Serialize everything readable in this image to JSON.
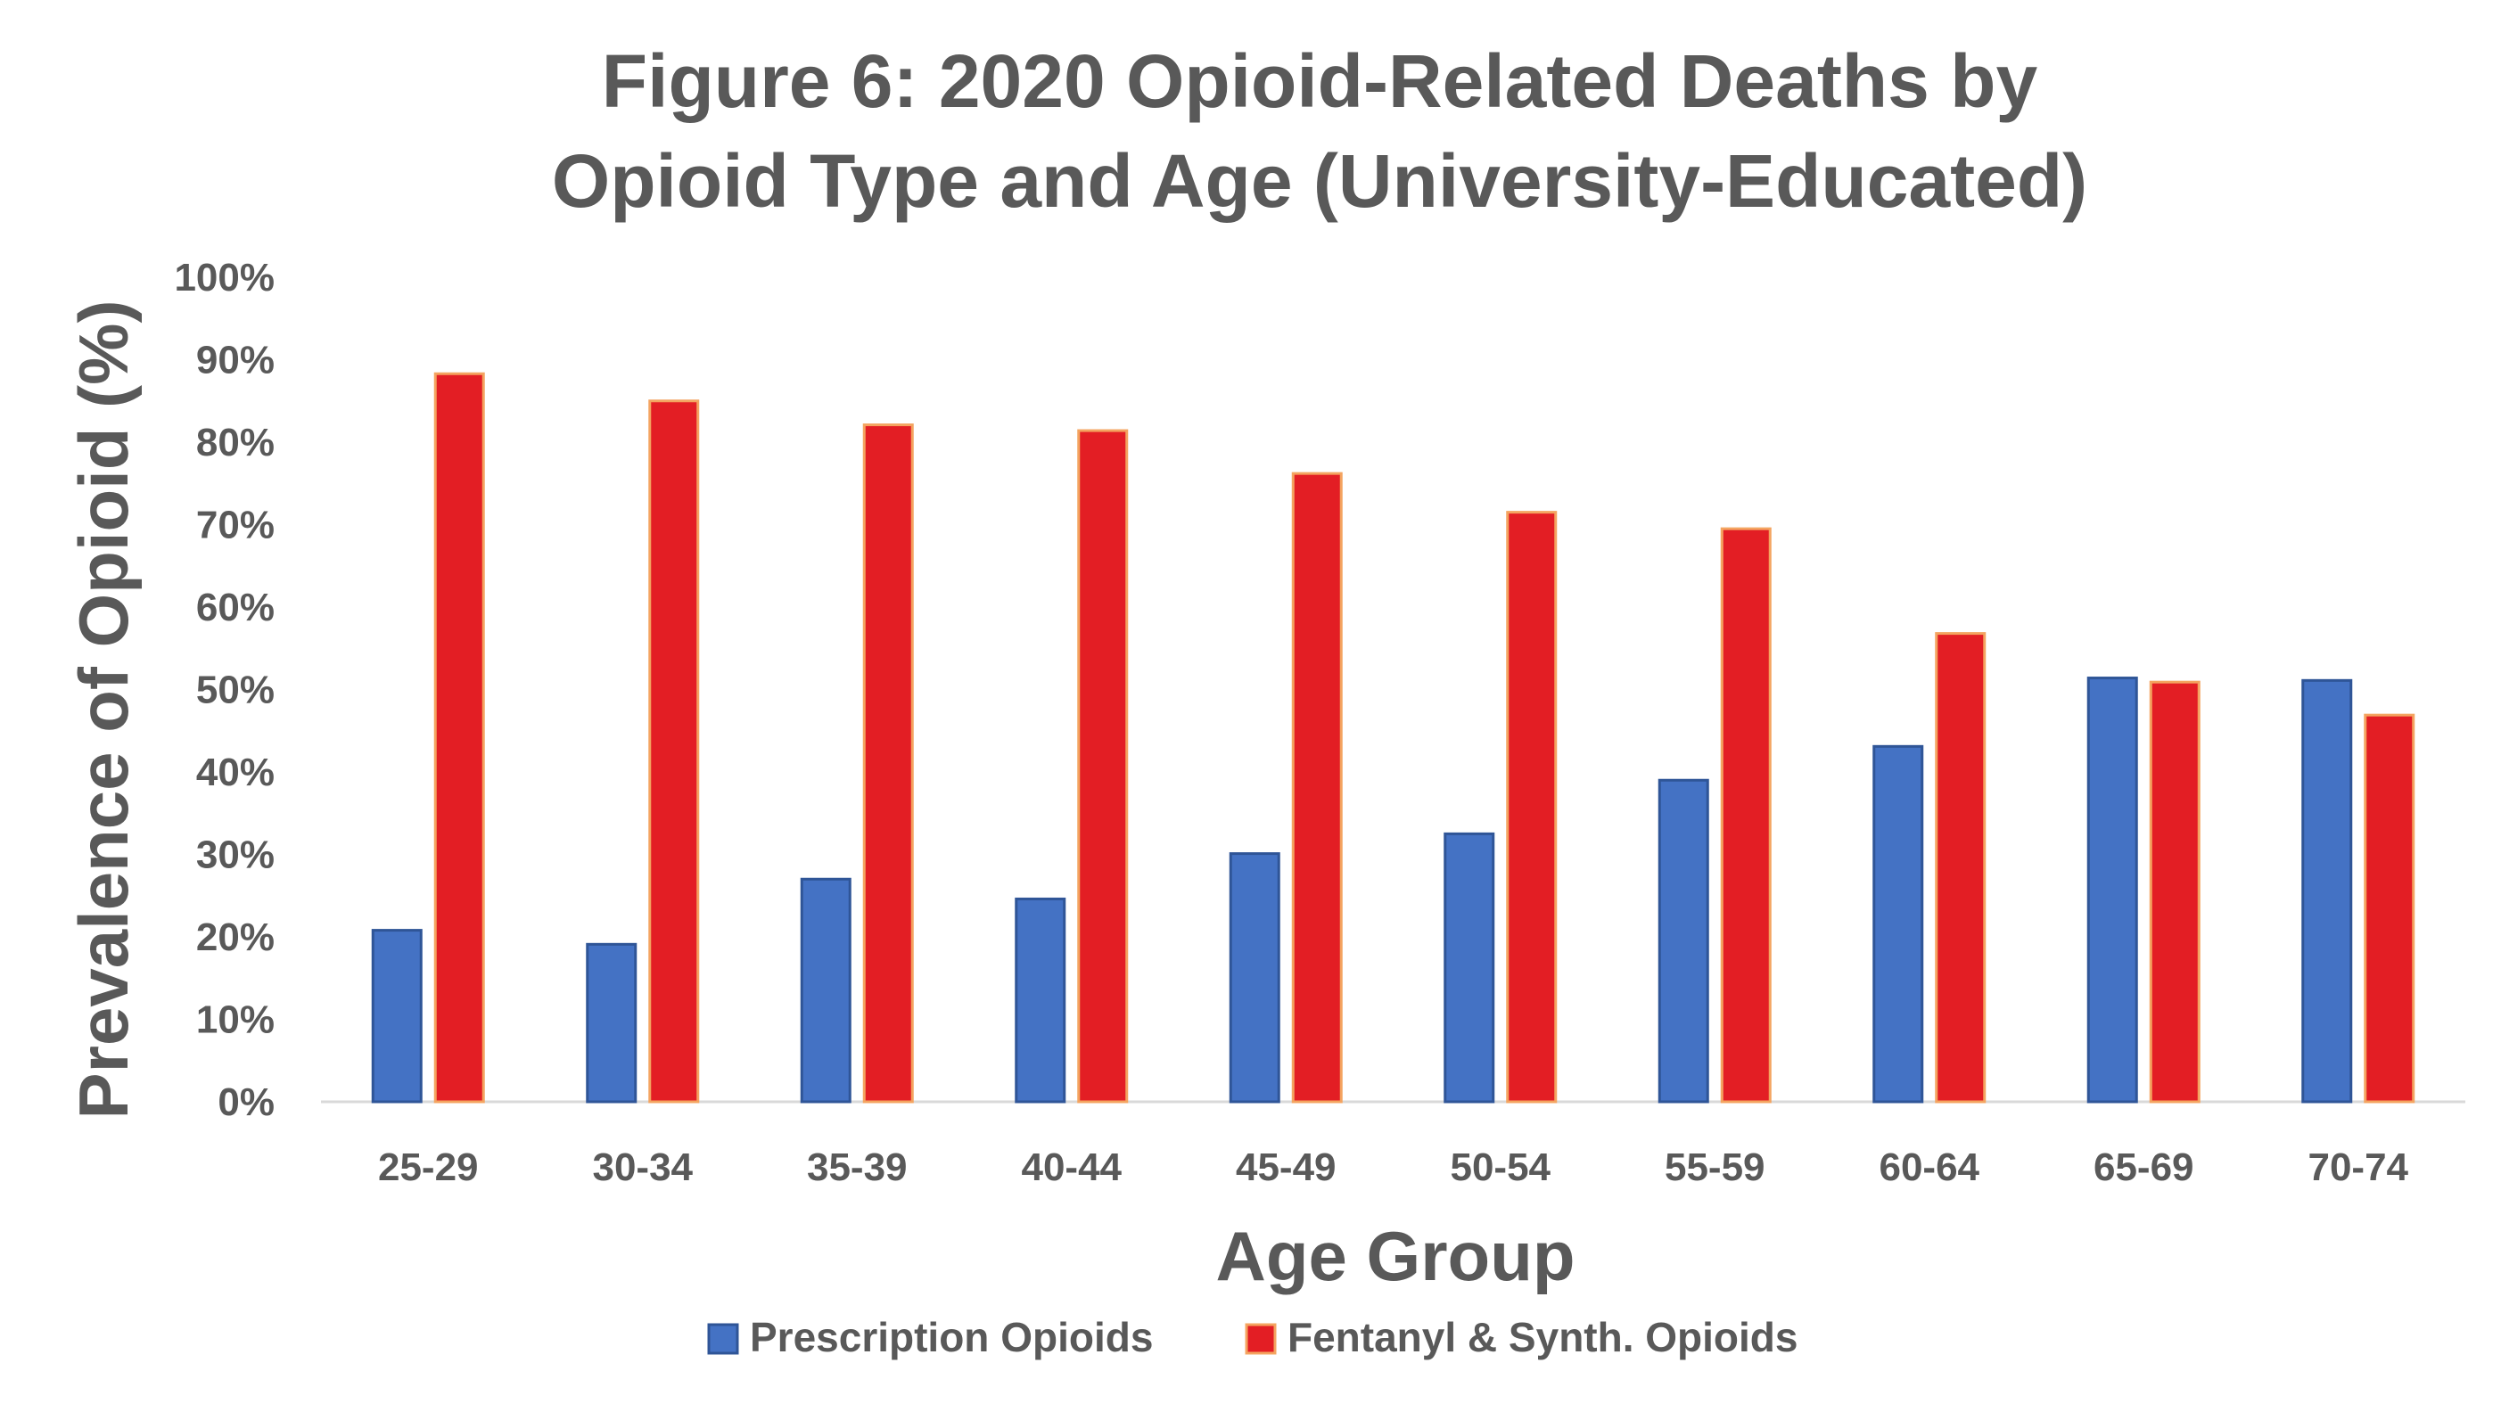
{
  "chart_data": {
    "type": "bar",
    "title_lines": [
      "Figure 6: 2020 Opioid-Related Deaths by",
      "Opioid Type and Age (University-Educated)"
    ],
    "xlabel": "Age Group",
    "ylabel": "Prevalence of Opioid (%)",
    "ylim": [
      0,
      100
    ],
    "yticks": [
      "0%",
      "10%",
      "20%",
      "30%",
      "40%",
      "50%",
      "60%",
      "70%",
      "80%",
      "90%",
      "100%"
    ],
    "categories": [
      "25-29",
      "30-34",
      "35-39",
      "40-44",
      "45-49",
      "50-54",
      "55-59",
      "60-64",
      "65-69",
      "70-74"
    ],
    "series": [
      {
        "name": "Prescription Opioids",
        "color": "#4472C4",
        "edge": "#2F5597",
        "values": [
          20.8,
          19.1,
          27.0,
          24.6,
          30.1,
          32.5,
          39.0,
          43.1,
          51.4,
          51.1
        ]
      },
      {
        "name": "Fentanyl & Synth. Opioids",
        "color": "#E31E24",
        "edge": "#F4A460",
        "values": [
          88.3,
          85.0,
          82.1,
          81.4,
          76.2,
          71.5,
          69.5,
          56.8,
          50.9,
          46.9
        ]
      }
    ],
    "legend_position": "bottom",
    "grid": false
  }
}
